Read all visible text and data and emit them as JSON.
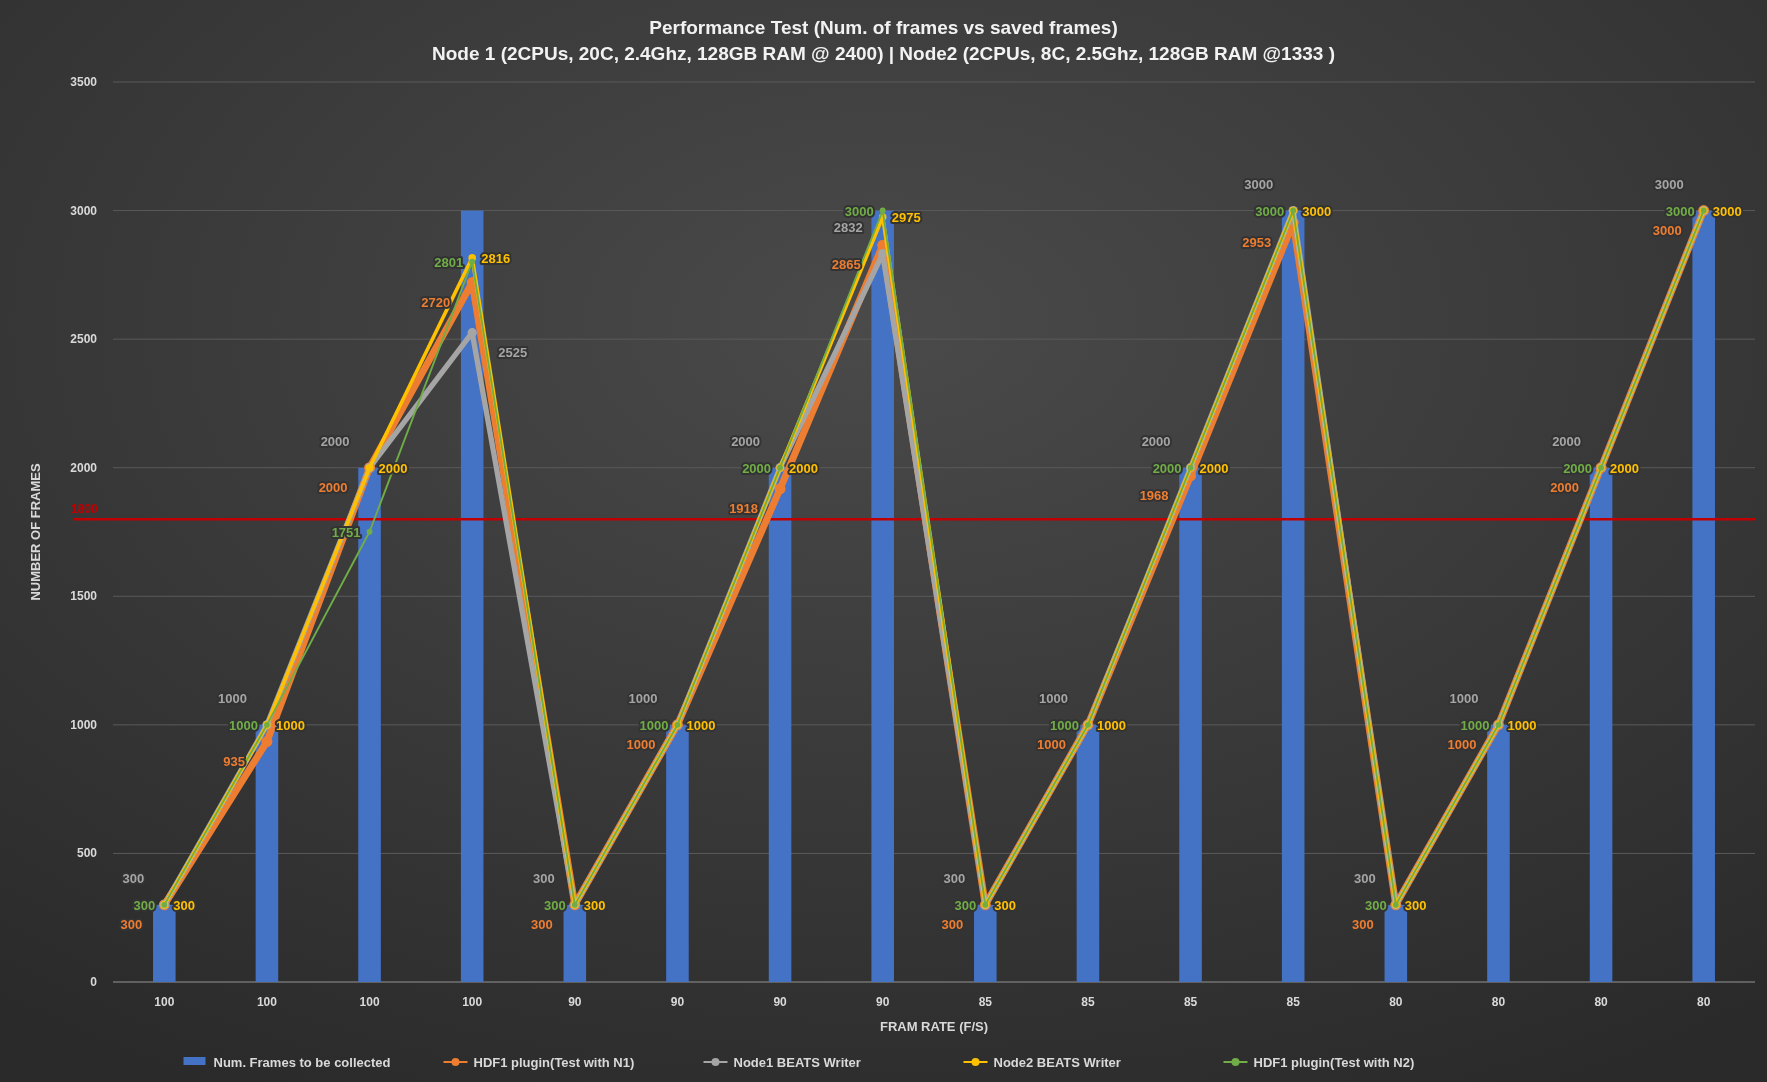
{
  "chart_data": {
    "type": "bar",
    "title": "Performance Test (Num. of frames vs saved frames)",
    "subtitle": "Node 1 (2CPUs, 20C, 2.4Ghz, 128GB RAM @ 2400) | Node2 (2CPUs, 8C, 2.5Ghz, 128GB RAM @1333 )",
    "xlabel": "FRAM RATE (F/S)",
    "ylabel": "NUMBER OF FRAMES",
    "categories": [
      "100",
      "100",
      "100",
      "100",
      "90",
      "90",
      "90",
      "90",
      "85",
      "85",
      "85",
      "85",
      "80",
      "80",
      "80",
      "80"
    ],
    "series": [
      {
        "name": "Num. Frames to be collected",
        "color": "#4472c4",
        "values": [
          300,
          1000,
          2000,
          3000,
          300,
          1000,
          2000,
          3000,
          300,
          1000,
          2000,
          3000,
          300,
          1000,
          2000,
          3000
        ]
      },
      {
        "name": "HDF1 plugin(Test with N1)",
        "type": "line",
        "color": "#ed7d31",
        "values": [
          300,
          935,
          2000,
          2720,
          300,
          1000,
          1918,
          2865,
          300,
          1000,
          1968,
          2953,
          300,
          1000,
          2000,
          3000
        ],
        "value_labels": [
          "300",
          "935",
          "2000",
          "2720",
          "300",
          "1000",
          "1918",
          "2865",
          "300",
          "1000",
          "1968",
          "2953",
          "300",
          "1000",
          "2000",
          "3000"
        ]
      },
      {
        "name": "Node1 BEATS Writer",
        "type": "line",
        "color": "#a5a5a5",
        "values": [
          300,
          1000,
          2000,
          2525,
          300,
          1000,
          2000,
          2832,
          300,
          1000,
          2000,
          3000,
          300,
          1000,
          2000,
          3000
        ],
        "value_labels": [
          "300",
          "1000",
          "2000",
          "2525",
          "300",
          "1000",
          "2000",
          "2832",
          "300",
          "1000",
          "2000",
          "3000",
          "300",
          "1000",
          "2000",
          "3000"
        ]
      },
      {
        "name": "Node2 BEATS Writer",
        "type": "line",
        "color": "#ffc000",
        "values": [
          300,
          1000,
          2000,
          2816,
          300,
          1000,
          2000,
          2975,
          300,
          1000,
          2000,
          3000,
          300,
          1000,
          2000,
          3000
        ],
        "value_labels": [
          "300",
          "1000",
          "2000",
          "2816",
          "300",
          "1000",
          "2000",
          "2975",
          "300",
          "1000",
          "2000",
          "3000",
          "300",
          "1000",
          "2000",
          "3000"
        ]
      },
      {
        "name": "HDF1 plugin(Test with N2)",
        "type": "line",
        "color": "#70ad47",
        "values": [
          300,
          1000,
          1751,
          2801,
          300,
          1000,
          2000,
          3000,
          300,
          1000,
          2000,
          3000,
          300,
          1000,
          2000,
          3000
        ],
        "value_labels": [
          "300",
          "1000",
          "1751",
          "2801",
          "300",
          "1000",
          "2000",
          "3000",
          "300",
          "1000",
          "2000",
          "3000",
          "300",
          "1000",
          "2000",
          "3000"
        ]
      }
    ],
    "ylim": [
      0,
      3500
    ],
    "yticks": [
      0,
      500,
      1000,
      1500,
      2000,
      2500,
      3000,
      3500
    ],
    "grid": "y",
    "legend": "bottom",
    "marker": "circle",
    "ref_lines": [
      {
        "axis": "y",
        "value": 1800,
        "label": "1800",
        "color": "#c00000"
      }
    ]
  }
}
